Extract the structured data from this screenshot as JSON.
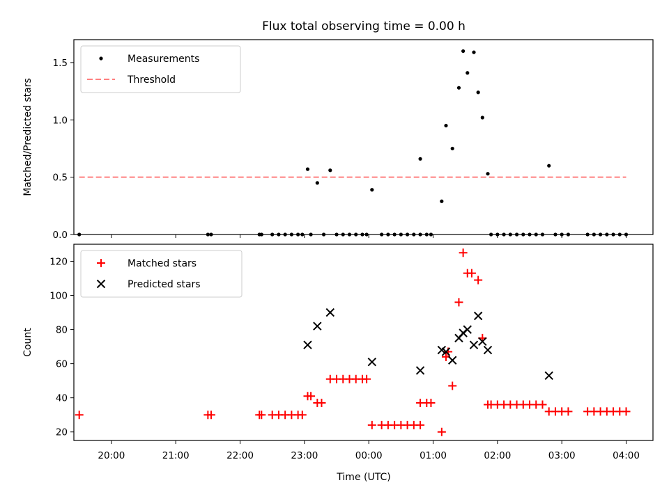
{
  "title": "Flux total observing time = 0.00 h",
  "xlabel": "Time (UTC)",
  "x_ticks": [
    "20:00",
    "21:00",
    "22:00",
    "23:00",
    "00:00",
    "01:00",
    "02:00",
    "03:00",
    "04:00"
  ],
  "colors": {
    "measurement": "#000000",
    "threshold": "#ff8080",
    "matched": "#ff0000",
    "predicted": "#000000",
    "axes": "#000000"
  },
  "chart_data": [
    {
      "type": "scatter",
      "ylabel": "Matched/Predicted stars",
      "xlim": [
        "19:25",
        "04:25"
      ],
      "ylim": [
        0,
        1.7
      ],
      "yticks": [
        0.0,
        0.5,
        1.0,
        1.5
      ],
      "ytick_labels": [
        "0.0",
        "0.5",
        "1.0",
        "1.5"
      ],
      "legend": {
        "position": "upper left",
        "entries": [
          "Measurements",
          "Threshold"
        ]
      },
      "threshold": {
        "name": "Threshold",
        "value": 0.5,
        "x_range": [
          "19:30",
          "04:00"
        ]
      },
      "series": [
        {
          "name": "Measurements",
          "marker": "dot",
          "points": [
            [
              "19:30",
              0
            ],
            [
              "21:30",
              0
            ],
            [
              "21:33",
              0
            ],
            [
              "22:18",
              0
            ],
            [
              "22:20",
              0
            ],
            [
              "22:30",
              0
            ],
            [
              "22:36",
              0
            ],
            [
              "22:42",
              0
            ],
            [
              "22:48",
              0
            ],
            [
              "22:54",
              0
            ],
            [
              "22:58",
              0
            ],
            [
              "23:03",
              0.57
            ],
            [
              "23:06",
              0
            ],
            [
              "23:12",
              0.45
            ],
            [
              "23:18",
              0
            ],
            [
              "23:24",
              0.56
            ],
            [
              "23:30",
              0
            ],
            [
              "23:36",
              0
            ],
            [
              "23:42",
              0
            ],
            [
              "23:48",
              0
            ],
            [
              "23:54",
              0
            ],
            [
              "23:58",
              0
            ],
            [
              "00:03",
              0.39
            ],
            [
              "00:12",
              0
            ],
            [
              "00:18",
              0
            ],
            [
              "00:24",
              0
            ],
            [
              "00:30",
              0
            ],
            [
              "00:36",
              0
            ],
            [
              "00:42",
              0
            ],
            [
              "00:48",
              0
            ],
            [
              "00:54",
              0
            ],
            [
              "00:58",
              0
            ],
            [
              "00:48",
              0.66
            ],
            [
              "01:08",
              0.29
            ],
            [
              "01:12",
              0.95
            ],
            [
              "01:18",
              0.75
            ],
            [
              "01:24",
              1.28
            ],
            [
              "01:28",
              1.6
            ],
            [
              "01:32",
              1.41
            ],
            [
              "01:38",
              1.59
            ],
            [
              "01:42",
              1.24
            ],
            [
              "01:46",
              1.02
            ],
            [
              "01:51",
              0.53
            ],
            [
              "01:54",
              0
            ],
            [
              "02:00",
              0
            ],
            [
              "02:06",
              0
            ],
            [
              "02:12",
              0
            ],
            [
              "02:18",
              0
            ],
            [
              "02:24",
              0
            ],
            [
              "02:30",
              0
            ],
            [
              "02:36",
              0
            ],
            [
              "02:42",
              0
            ],
            [
              "02:48",
              0.6
            ],
            [
              "02:54",
              0
            ],
            [
              "03:00",
              0
            ],
            [
              "03:06",
              0
            ],
            [
              "03:24",
              0
            ],
            [
              "03:30",
              0
            ],
            [
              "03:36",
              0
            ],
            [
              "03:42",
              0
            ],
            [
              "03:48",
              0
            ],
            [
              "03:54",
              0
            ],
            [
              "04:00",
              0
            ]
          ]
        }
      ]
    },
    {
      "type": "scatter",
      "ylabel": "Count",
      "xlim": [
        "19:25",
        "04:25"
      ],
      "ylim": [
        15,
        130
      ],
      "yticks": [
        20,
        40,
        60,
        80,
        100,
        120
      ],
      "ytick_labels": [
        "20",
        "40",
        "60",
        "80",
        "100",
        "120"
      ],
      "legend": {
        "position": "upper left",
        "entries": [
          "Matched stars",
          "Predicted stars"
        ]
      },
      "series": [
        {
          "name": "Matched stars",
          "marker": "plus",
          "points": [
            [
              "19:30",
              30
            ],
            [
              "21:30",
              30
            ],
            [
              "21:33",
              30
            ],
            [
              "22:18",
              30
            ],
            [
              "22:20",
              30
            ],
            [
              "22:30",
              30
            ],
            [
              "22:36",
              30
            ],
            [
              "22:42",
              30
            ],
            [
              "22:48",
              30
            ],
            [
              "22:54",
              30
            ],
            [
              "22:58",
              30
            ],
            [
              "23:03",
              41
            ],
            [
              "23:06",
              41
            ],
            [
              "23:12",
              37
            ],
            [
              "23:16",
              37
            ],
            [
              "23:24",
              51
            ],
            [
              "23:30",
              51
            ],
            [
              "23:36",
              51
            ],
            [
              "23:42",
              51
            ],
            [
              "23:48",
              51
            ],
            [
              "23:54",
              51
            ],
            [
              "23:58",
              51
            ],
            [
              "00:03",
              24
            ],
            [
              "00:12",
              24
            ],
            [
              "00:18",
              24
            ],
            [
              "00:24",
              24
            ],
            [
              "00:30",
              24
            ],
            [
              "00:36",
              24
            ],
            [
              "00:42",
              24
            ],
            [
              "00:48",
              24
            ],
            [
              "00:48",
              37
            ],
            [
              "00:54",
              37
            ],
            [
              "00:58",
              37
            ],
            [
              "01:08",
              20
            ],
            [
              "01:12",
              64
            ],
            [
              "01:14",
              67
            ],
            [
              "01:18",
              47
            ],
            [
              "01:24",
              96
            ],
            [
              "01:28",
              125
            ],
            [
              "01:32",
              113
            ],
            [
              "01:36",
              113
            ],
            [
              "01:42",
              109
            ],
            [
              "01:46",
              75
            ],
            [
              "01:51",
              36
            ],
            [
              "01:54",
              36
            ],
            [
              "02:00",
              36
            ],
            [
              "02:06",
              36
            ],
            [
              "02:12",
              36
            ],
            [
              "02:18",
              36
            ],
            [
              "02:24",
              36
            ],
            [
              "02:30",
              36
            ],
            [
              "02:36",
              36
            ],
            [
              "02:42",
              36
            ],
            [
              "02:48",
              32
            ],
            [
              "02:54",
              32
            ],
            [
              "03:00",
              32
            ],
            [
              "03:06",
              32
            ],
            [
              "03:24",
              32
            ],
            [
              "03:30",
              32
            ],
            [
              "03:36",
              32
            ],
            [
              "03:42",
              32
            ],
            [
              "03:48",
              32
            ],
            [
              "03:54",
              32
            ],
            [
              "04:00",
              32
            ]
          ]
        },
        {
          "name": "Predicted stars",
          "marker": "x",
          "points": [
            [
              "23:03",
              71
            ],
            [
              "23:12",
              82
            ],
            [
              "23:24",
              90
            ],
            [
              "00:03",
              61
            ],
            [
              "00:48",
              56
            ],
            [
              "01:08",
              68
            ],
            [
              "01:12",
              67
            ],
            [
              "01:18",
              62
            ],
            [
              "01:24",
              75
            ],
            [
              "01:28",
              78
            ],
            [
              "01:32",
              80
            ],
            [
              "01:38",
              71
            ],
            [
              "01:42",
              88
            ],
            [
              "01:46",
              73
            ],
            [
              "01:51",
              68
            ],
            [
              "02:48",
              53
            ]
          ]
        }
      ]
    }
  ]
}
